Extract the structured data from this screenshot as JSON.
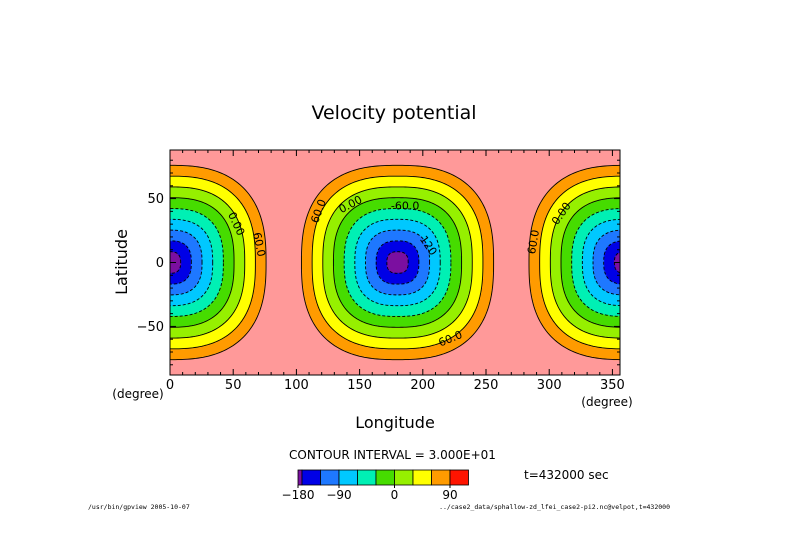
{
  "chart_data": {
    "type": "contour",
    "title": "Velocity potential",
    "xlabel": "Longitude",
    "ylabel": "Latitude",
    "x_unit": "(degree)",
    "y_unit": "(degree)",
    "xlim": [
      0,
      356
    ],
    "ylim": [
      -88,
      88
    ],
    "x_ticks": [
      0,
      50,
      100,
      150,
      200,
      250,
      300,
      350
    ],
    "y_ticks": [
      -50,
      0,
      50
    ],
    "contour_interval_text": "CONTOUR INTERVAL = 3.000E+01",
    "contour_interval": 30,
    "time_text": "t=432000 sec",
    "field_minima_lon": [
      0,
      180,
      360
    ],
    "field_min_value": -180,
    "background_value": 90,
    "contour_labels": [
      {
        "text": "0.00",
        "lon": 52,
        "lat": 30,
        "angle": 65
      },
      {
        "text": "60.0",
        "lon": 70,
        "lat": 14,
        "angle": 78
      },
      {
        "text": "60.0",
        "lon": 118,
        "lat": 40,
        "angle": -70
      },
      {
        "text": "0.00",
        "lon": 143,
        "lat": 45,
        "angle": -28
      },
      {
        "text": "-60.0",
        "lon": 186,
        "lat": 44,
        "angle": 0
      },
      {
        "text": "120",
        "lon": 204,
        "lat": 13,
        "angle": 55
      },
      {
        "text": "60.0",
        "lon": 222,
        "lat": -60,
        "angle": -22
      },
      {
        "text": "60.0",
        "lon": 288,
        "lat": 16,
        "angle": -80
      },
      {
        "text": "0.00",
        "lon": 310,
        "lat": 38,
        "angle": -55
      }
    ],
    "colorbar": {
      "tick_labels": [
        "-180",
        "-90",
        "0",
        "90"
      ],
      "tick_values": [
        -180,
        -90,
        0,
        90
      ],
      "levels": [
        -180,
        -150,
        -120,
        -90,
        -60,
        -30,
        0,
        30,
        60,
        90,
        120
      ],
      "colors": [
        "#7b0fa0",
        "#0000e6",
        "#1e78ff",
        "#00c8ff",
        "#00f0b4",
        "#46dc00",
        "#96f000",
        "#ffff00",
        "#ff9b00",
        "#ff1400",
        "#ff9999"
      ]
    },
    "grid": false
  },
  "footer": {
    "left": "/usr/bin/gpview  2005-10-07",
    "right": "../case2_data/sphallow-zd_lfei_case2-pi2.nc@velpot,t=432000"
  }
}
